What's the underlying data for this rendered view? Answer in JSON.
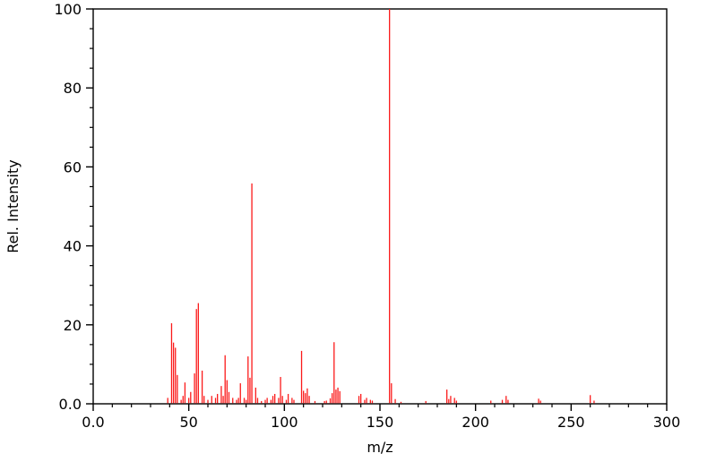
{
  "figure": {
    "background": "#ffffff",
    "axis_color": "#000000"
  },
  "chart_data": {
    "type": "bar",
    "subtype": "mass-spectrum-stick-plot",
    "title": "",
    "xlabel": "m/z",
    "ylabel": "Rel. Intensity",
    "xlim": [
      0,
      300
    ],
    "ylim": [
      0,
      100
    ],
    "grid": false,
    "legend": false,
    "bar_color": "#fb1a1a",
    "x_major_ticks": [
      0,
      50,
      100,
      150,
      200,
      250,
      300
    ],
    "x_major_tick_labels": [
      "0.0",
      "50",
      "100",
      "150",
      "200",
      "250",
      "300"
    ],
    "x_minor_tick_step": 10,
    "y_major_ticks": [
      0,
      20,
      40,
      60,
      80,
      100
    ],
    "y_major_tick_labels": [
      "0.0",
      "20",
      "40",
      "60",
      "80",
      "100"
    ],
    "y_minor_tick_step": 5,
    "peaks": [
      [
        39,
        1.5
      ],
      [
        41,
        20.4
      ],
      [
        42,
        15.5
      ],
      [
        43,
        14.2
      ],
      [
        44,
        7.3
      ],
      [
        46,
        1
      ],
      [
        47,
        2
      ],
      [
        48,
        5.4
      ],
      [
        50,
        1.5
      ],
      [
        51,
        3
      ],
      [
        53,
        7.7
      ],
      [
        54,
        24
      ],
      [
        55,
        25.5
      ],
      [
        57,
        8.4
      ],
      [
        58,
        2
      ],
      [
        60,
        1
      ],
      [
        62,
        2
      ],
      [
        64,
        1.5
      ],
      [
        65,
        2.5
      ],
      [
        67,
        4.5
      ],
      [
        68,
        2
      ],
      [
        69,
        12.3
      ],
      [
        70,
        6
      ],
      [
        71,
        3
      ],
      [
        73,
        1.5
      ],
      [
        75,
        1
      ],
      [
        76,
        1.5
      ],
      [
        77,
        5.2
      ],
      [
        79,
        1.5
      ],
      [
        80,
        1
      ],
      [
        81,
        12
      ],
      [
        82,
        6.6
      ],
      [
        83,
        55.8
      ],
      [
        85,
        4.1
      ],
      [
        86,
        1.5
      ],
      [
        88,
        0.7
      ],
      [
        90,
        1
      ],
      [
        91,
        1.5
      ],
      [
        93,
        1
      ],
      [
        94,
        2
      ],
      [
        95,
        2.5
      ],
      [
        97,
        1.5
      ],
      [
        98,
        6.8
      ],
      [
        99,
        2
      ],
      [
        101,
        1
      ],
      [
        102,
        2.5
      ],
      [
        104,
        1.5
      ],
      [
        105,
        1
      ],
      [
        109,
        13.4
      ],
      [
        110,
        3.3
      ],
      [
        111,
        2.7
      ],
      [
        112,
        3.9
      ],
      [
        113,
        2
      ],
      [
        116,
        0.7
      ],
      [
        121,
        0.7
      ],
      [
        122,
        0.8
      ],
      [
        124,
        1.4
      ],
      [
        125,
        2.7
      ],
      [
        126,
        15.6
      ],
      [
        127,
        3.6
      ],
      [
        128,
        4.1
      ],
      [
        129,
        3.2
      ],
      [
        139,
        2
      ],
      [
        140,
        2.5
      ],
      [
        142,
        1
      ],
      [
        143,
        1.5
      ],
      [
        145,
        1
      ],
      [
        146,
        0.8
      ],
      [
        155,
        100
      ],
      [
        156,
        5.2
      ],
      [
        158,
        1.2
      ],
      [
        161,
        0.5
      ],
      [
        174,
        0.7
      ],
      [
        185,
        3.6
      ],
      [
        186,
        1.2
      ],
      [
        187,
        2
      ],
      [
        189,
        1.5
      ],
      [
        190,
        0.8
      ],
      [
        208,
        0.8
      ],
      [
        214,
        1
      ],
      [
        216,
        2
      ],
      [
        217,
        1
      ],
      [
        233,
        1.3
      ],
      [
        234,
        0.8
      ],
      [
        260,
        2.2
      ],
      [
        262,
        0.8
      ]
    ]
  }
}
